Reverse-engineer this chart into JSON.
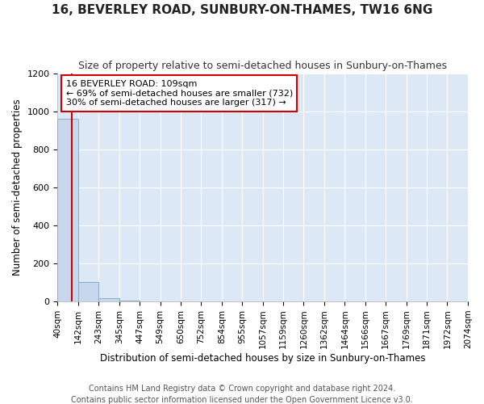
{
  "title": "16, BEVERLEY ROAD, SUNBURY-ON-THAMES, TW16 6NG",
  "subtitle": "Size of property relative to semi-detached houses in Sunbury-on-Thames",
  "xlabel": "Distribution of semi-detached houses by size in Sunbury-on-Thames",
  "ylabel": "Number of semi-detached properties",
  "footer_line1": "Contains HM Land Registry data © Crown copyright and database right 2024.",
  "footer_line2": "Contains public sector information licensed under the Open Government Licence v3.0.",
  "annotation_title": "16 BEVERLEY ROAD: 109sqm",
  "annotation_line1": "← 69% of semi-detached houses are smaller (732)",
  "annotation_line2": "30% of semi-detached houses are larger (317) →",
  "property_size": 109,
  "bar_edges": [
    40,
    142,
    243,
    345,
    447,
    549,
    650,
    752,
    854,
    955,
    1057,
    1159,
    1260,
    1362,
    1464,
    1566,
    1667,
    1769,
    1871,
    1972,
    2074
  ],
  "bar_heights": [
    960,
    100,
    15,
    3,
    1,
    0,
    0,
    0,
    0,
    0,
    0,
    0,
    0,
    0,
    0,
    0,
    0,
    0,
    0,
    0
  ],
  "bar_color": "#c8d8ec",
  "bar_edge_color": "#8aaec8",
  "vline_color": "#cc0000",
  "annotation_box_color": "#cc0000",
  "figure_background": "#ffffff",
  "plot_background": "#dce8f5",
  "grid_color": "#ffffff",
  "ylim": [
    0,
    1200
  ],
  "title_fontsize": 11,
  "subtitle_fontsize": 9,
  "axis_label_fontsize": 8.5,
  "tick_fontsize": 7.5,
  "annotation_fontsize": 8,
  "footer_fontsize": 7
}
